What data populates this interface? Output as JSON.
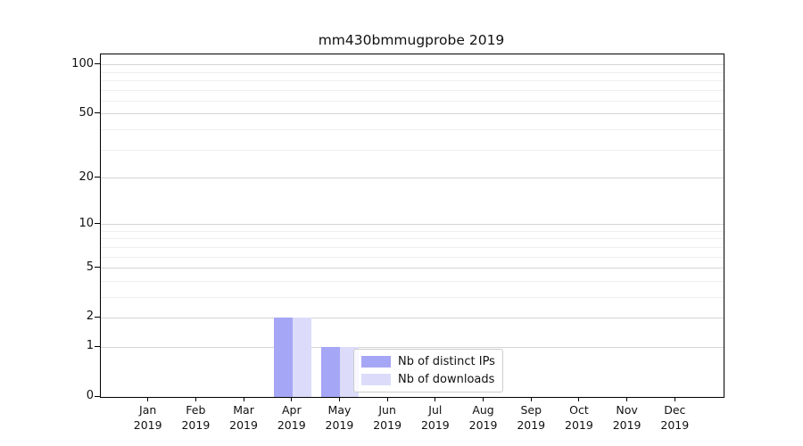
{
  "chart_data": {
    "type": "bar",
    "title": "mm430bmmugprobe 2019",
    "year": "2019",
    "categories": [
      "Jan",
      "Feb",
      "Mar",
      "Apr",
      "May",
      "Jun",
      "Jul",
      "Aug",
      "Sep",
      "Oct",
      "Nov",
      "Dec"
    ],
    "series": [
      {
        "name": "Nb of distinct IPs",
        "color": "#a6a6f6",
        "values": [
          0,
          0,
          0,
          2,
          1,
          0,
          0,
          0,
          0,
          0,
          0,
          0
        ]
      },
      {
        "name": "Nb of downloads",
        "color": "#dcdcfa",
        "values": [
          0,
          0,
          0,
          2,
          1,
          0,
          0,
          0,
          0,
          0,
          0,
          0
        ]
      }
    ],
    "yscale": "log1p",
    "ylim": [
      0,
      116
    ],
    "y_ticks": [
      0,
      1,
      2,
      5,
      10,
      20,
      50,
      100
    ],
    "y_minor_gridlines": [
      3,
      4,
      6,
      7,
      8,
      9,
      30,
      40,
      60,
      70,
      80,
      90
    ],
    "grid": true,
    "legend_position": "lower-center"
  }
}
